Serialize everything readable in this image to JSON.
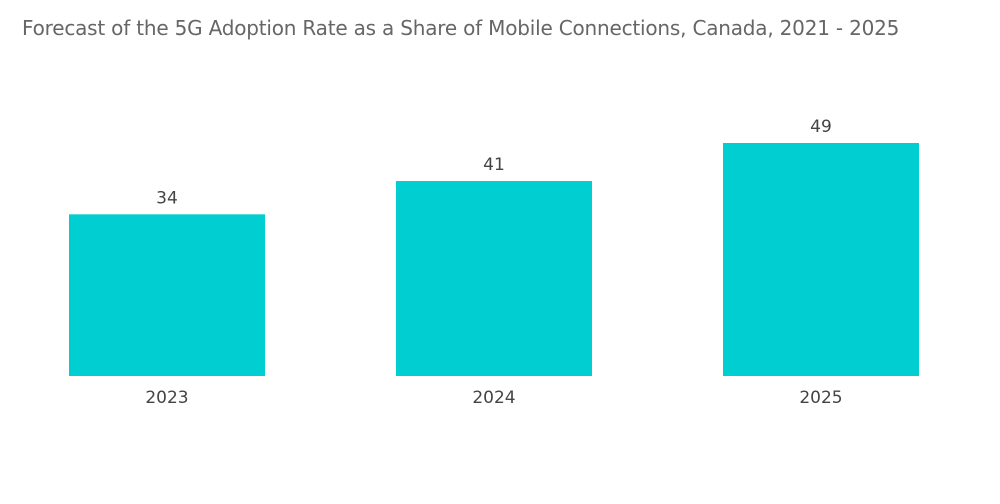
{
  "chart_data": {
    "type": "bar",
    "title": "Forecast of the 5G Adoption Rate as a Share of Mobile Connections, Canada, 2021 - 2025",
    "categories": [
      "2023",
      "2024",
      "2025"
    ],
    "values": [
      34,
      41,
      49
    ],
    "xlabel": "",
    "ylabel": "",
    "ylim": [
      0,
      49
    ],
    "grid": false,
    "data_labels": true,
    "colors": {
      "bar": "#00CED1",
      "title": "#666666",
      "labels": "#444444"
    }
  }
}
